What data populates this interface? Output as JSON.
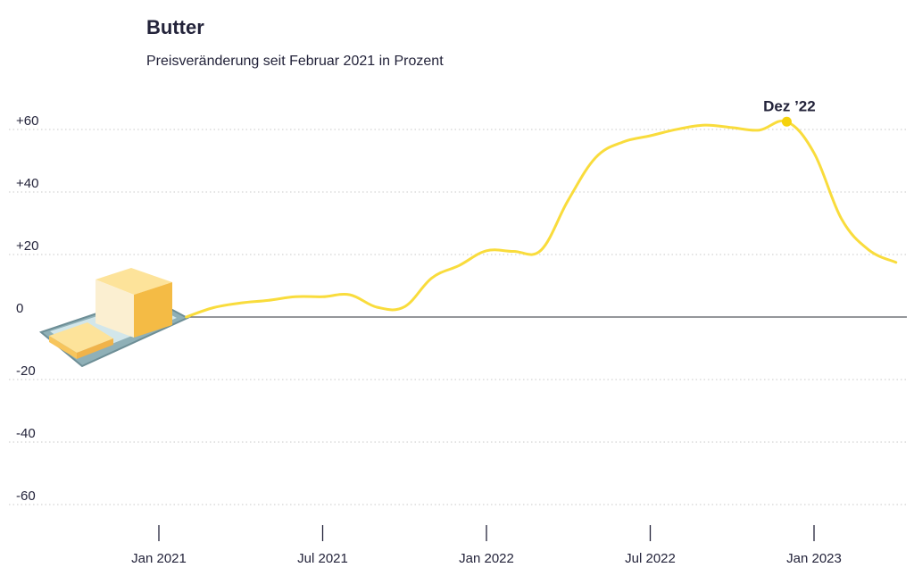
{
  "chart_data": {
    "type": "line",
    "title": "Butter",
    "subtitle": "Preisveränderung seit Februar 2021 in Prozent",
    "xlabel": "",
    "ylabel": "",
    "ylim": [
      -66,
      68
    ],
    "y_ticks": [
      {
        "value": 60,
        "label": "+60"
      },
      {
        "value": 40,
        "label": "+40"
      },
      {
        "value": 20,
        "label": "+20"
      },
      {
        "value": 0,
        "label": "0"
      },
      {
        "value": -20,
        "label": "-20"
      },
      {
        "value": -40,
        "label": "-40"
      },
      {
        "value": -60,
        "label": "-60"
      }
    ],
    "x_ticks": [
      {
        "date": "2021-01",
        "label": "Jan 2021"
      },
      {
        "date": "2021-07",
        "label": "Jul 2021"
      },
      {
        "date": "2022-01",
        "label": "Jan 2022"
      },
      {
        "date": "2022-07",
        "label": "Jul 2022"
      },
      {
        "date": "2023-01",
        "label": "Jan 2023"
      }
    ],
    "xlim": [
      "2020-10",
      "2023-04"
    ],
    "grid": "horizontal dotted",
    "zero_line": true,
    "series": [
      {
        "color": "#f9dc3c",
        "points": [
          {
            "x": "2021-02",
            "y": 0
          },
          {
            "x": "2021-03",
            "y": 3
          },
          {
            "x": "2021-04",
            "y": 4.5
          },
          {
            "x": "2021-05",
            "y": 5.3
          },
          {
            "x": "2021-06",
            "y": 6.5
          },
          {
            "x": "2021-07",
            "y": 6.5
          },
          {
            "x": "2021-08",
            "y": 7.1
          },
          {
            "x": "2021-09",
            "y": 3.1
          },
          {
            "x": "2021-10",
            "y": 3.3
          },
          {
            "x": "2021-11",
            "y": 12.5
          },
          {
            "x": "2021-12",
            "y": 16.5
          },
          {
            "x": "2022-01",
            "y": 21.2
          },
          {
            "x": "2022-02",
            "y": 21
          },
          {
            "x": "2022-03",
            "y": 21.4
          },
          {
            "x": "2022-04",
            "y": 37.5
          },
          {
            "x": "2022-05",
            "y": 51
          },
          {
            "x": "2022-06",
            "y": 56
          },
          {
            "x": "2022-07",
            "y": 58
          },
          {
            "x": "2022-08",
            "y": 60.1
          },
          {
            "x": "2022-09",
            "y": 61.4
          },
          {
            "x": "2022-10",
            "y": 60.6
          },
          {
            "x": "2022-11",
            "y": 59.8
          },
          {
            "x": "2022-12",
            "y": 62.5
          },
          {
            "x": "2023-01",
            "y": 52.5
          },
          {
            "x": "2023-02",
            "y": 31.5
          },
          {
            "x": "2023-03",
            "y": 21.5
          },
          {
            "x": "2023-04",
            "y": 17.5
          }
        ]
      }
    ],
    "annotations": [
      {
        "x": "2022-12",
        "y": 62.5,
        "label": "Dez ’22"
      }
    ]
  },
  "colors": {
    "line": "#f9dc3c",
    "text": "#23233a",
    "grid": "#c8c8c8",
    "zero_line": "#55575e"
  },
  "illustration": "butter-dish-icon"
}
